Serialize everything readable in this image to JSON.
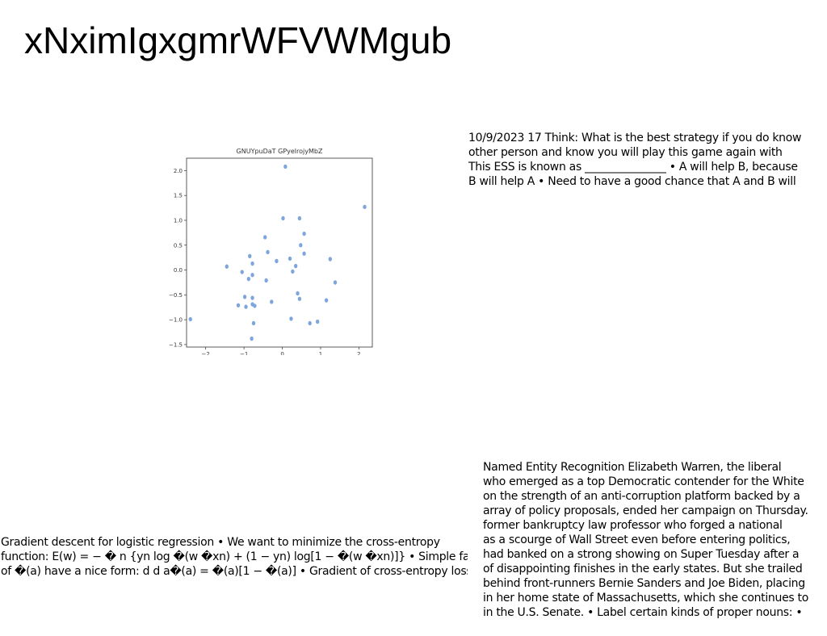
{
  "page": {
    "title": "xNximIgxgmrWFVWMgub"
  },
  "top_right_text": {
    "lines": [
      "10/9/2023 17 Think: What is the best strategy if you do know",
      "other person and know you will play this game again with",
      "This ESS is known as _______________ • A will help B, because",
      "B will help A • Need to have a good chance that A and B will"
    ]
  },
  "bottom_left_text": {
    "lines": [
      "Gradient descent for logistic regression • We want to minimize the cross-entropy",
      "function: E(w) = − � n {yn log �(w �xn) + (1 − yn) log[1 − �(w �xn)]} • Simple fact:",
      "of �(a) have a nice form: d d a�(a) = �(a)[1 − �(a)] • Gradient of cross-entropy loss is"
    ]
  },
  "bottom_right_text": {
    "lines": [
      "Named Entity Recognition Elizabeth Warren, the liberal",
      "who emerged as a top Democratic contender for the White",
      "on the strength of an anti-corruption platform backed by a",
      "array of policy proposals, ended her campaign on Thursday.",
      "former bankruptcy law professor who forged a national",
      "as a scourge of Wall Street even before entering politics,",
      "had banked on a strong showing on Super Tuesday after a",
      "of disappointing finishes in the early states. But she trailed",
      "behind front-runners Bernie Sanders and Joe Biden, placing",
      "in her home state of Massachusetts, which she continues to",
      "in the U.S. Senate. • Label certain kinds of proper nouns: •"
    ]
  },
  "chart_data": {
    "type": "scatter",
    "title": "GNUYpuDaT GPyelrojyMbZ",
    "xlabel": "",
    "ylabel": "",
    "xlim": [
      -2.5,
      2.35
    ],
    "ylim": [
      -1.55,
      2.25
    ],
    "xticks": [
      -2,
      -1,
      0,
      1,
      2
    ],
    "xtick_labels": [
      "−2",
      "−1",
      "0",
      "1",
      "2"
    ],
    "yticks": [
      -1.5,
      -1.0,
      -0.5,
      0.0,
      0.5,
      1.0,
      1.5,
      2.0
    ],
    "ytick_labels": [
      "−1.5",
      "−1.0",
      "−0.5",
      "0.0",
      "0.5",
      "1.0",
      "1.5",
      "2.0"
    ],
    "grid": false,
    "marker_color": "#7fa6dc",
    "series": [
      {
        "points": [
          [
            0.08,
            2.08
          ],
          [
            2.15,
            1.27
          ],
          [
            0.02,
            1.04
          ],
          [
            0.45,
            1.04
          ],
          [
            0.57,
            0.73
          ],
          [
            -0.45,
            0.66
          ],
          [
            0.48,
            0.5
          ],
          [
            -0.38,
            0.36
          ],
          [
            0.57,
            0.33
          ],
          [
            -0.85,
            0.28
          ],
          [
            1.25,
            0.22
          ],
          [
            0.2,
            0.23
          ],
          [
            -0.15,
            0.18
          ],
          [
            -0.78,
            0.13
          ],
          [
            0.35,
            0.08
          ],
          [
            -1.45,
            0.07
          ],
          [
            -1.05,
            -0.04
          ],
          [
            0.27,
            -0.03
          ],
          [
            -0.78,
            -0.1
          ],
          [
            -0.88,
            -0.18
          ],
          [
            -0.42,
            -0.21
          ],
          [
            1.38,
            -0.25
          ],
          [
            0.4,
            -0.47
          ],
          [
            -0.98,
            -0.54
          ],
          [
            -0.78,
            -0.56
          ],
          [
            0.45,
            -0.58
          ],
          [
            1.15,
            -0.61
          ],
          [
            -0.28,
            -0.64
          ],
          [
            -0.78,
            -0.69
          ],
          [
            -1.15,
            -0.71
          ],
          [
            -0.72,
            -0.72
          ],
          [
            -0.95,
            -0.74
          ],
          [
            0.23,
            -0.98
          ],
          [
            -2.4,
            -0.99
          ],
          [
            0.92,
            -1.04
          ],
          [
            0.72,
            -1.07
          ],
          [
            -0.75,
            -1.07
          ],
          [
            -0.8,
            -1.38
          ]
        ]
      }
    ]
  }
}
